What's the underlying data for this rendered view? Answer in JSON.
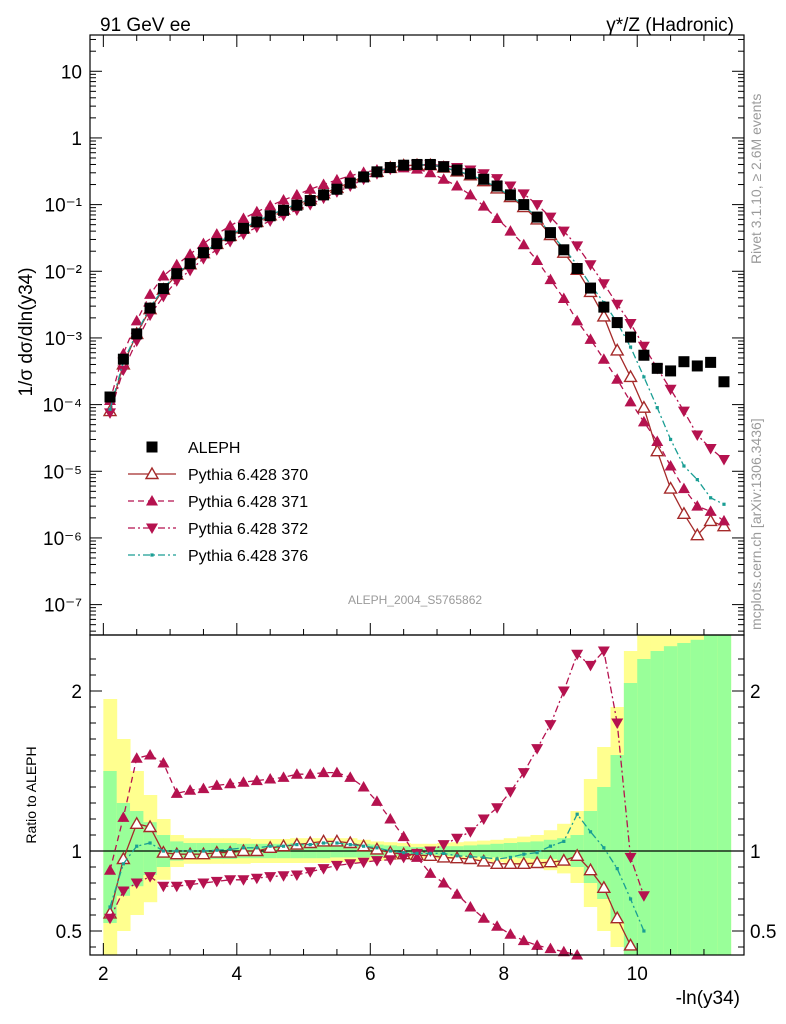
{
  "header": {
    "left": "91 GeV ee",
    "right": "γ*/Z (Hadronic)"
  },
  "side": {
    "rivet": "Rivet 3.1.10, ≥ 2.6M events",
    "url": "mcplots.cern.ch [arXiv:1306.3436]"
  },
  "watermark": "ALEPH_2004_S5765862",
  "chart_data": [
    {
      "type": "scatter",
      "title": "",
      "ylabel": "1/σ  dσ/dln(y34)",
      "yscale": "log",
      "ylim": [
        3.5e-08,
        35
      ],
      "xlim": [
        1.8,
        11.6
      ],
      "yticks": [
        {
          "v": 1e-07,
          "label": "10⁻⁷"
        },
        {
          "v": 1e-06,
          "label": "10⁻⁶"
        },
        {
          "v": 1e-05,
          "label": "10⁻⁵"
        },
        {
          "v": 0.0001,
          "label": "10⁻⁴"
        },
        {
          "v": 0.001,
          "label": "10⁻³"
        },
        {
          "v": 0.01,
          "label": "10⁻²"
        },
        {
          "v": 0.1,
          "label": "10⁻¹"
        },
        {
          "v": 1,
          "label": "1"
        },
        {
          "v": 10,
          "label": "10"
        }
      ],
      "x": [
        2.1,
        2.3,
        2.5,
        2.7,
        2.9,
        3.1,
        3.3,
        3.5,
        3.7,
        3.9,
        4.1,
        4.3,
        4.5,
        4.7,
        4.9,
        5.1,
        5.3,
        5.5,
        5.7,
        5.9,
        6.1,
        6.3,
        6.5,
        6.7,
        6.9,
        7.1,
        7.3,
        7.5,
        7.7,
        7.9,
        8.1,
        8.3,
        8.5,
        8.7,
        8.9,
        9.1,
        9.3,
        9.5,
        9.7,
        9.9,
        10.1,
        10.3,
        10.5,
        10.7,
        10.9,
        11.1,
        11.3
      ],
      "series": [
        {
          "name": "ALEPH",
          "color": "#000000",
          "marker": "square-filled",
          "line": "none",
          "values": [
            0.00013,
            0.00048,
            0.00115,
            0.0028,
            0.0055,
            0.0092,
            0.013,
            0.019,
            0.026,
            0.034,
            0.044,
            0.055,
            0.068,
            0.082,
            0.098,
            0.115,
            0.14,
            0.17,
            0.21,
            0.26,
            0.31,
            0.36,
            0.39,
            0.4,
            0.4,
            0.37,
            0.33,
            0.29,
            0.24,
            0.19,
            0.14,
            0.1,
            0.065,
            0.038,
            0.021,
            0.011,
            0.0056,
            0.0029,
            0.0017,
            0.00103,
            0.00055,
            0.00035,
            0.00032,
            0.00044,
            0.00038,
            0.00043,
            0.00022
          ]
        },
        {
          "name": "Pythia 6.428 370",
          "color": "#a52a2a",
          "marker": "triangle-up-open",
          "line": "solid",
          "values": [
            8e-05,
            0.0004,
            0.00115,
            0.0027,
            0.0053,
            0.0089,
            0.0127,
            0.0187,
            0.0257,
            0.0339,
            0.044,
            0.055,
            0.069,
            0.084,
            0.101,
            0.12,
            0.147,
            0.178,
            0.215,
            0.265,
            0.31,
            0.355,
            0.385,
            0.39,
            0.39,
            0.36,
            0.315,
            0.275,
            0.225,
            0.175,
            0.13,
            0.092,
            0.06,
            0.035,
            0.019,
            0.0105,
            0.0049,
            0.0021,
            0.00065,
            0.00026,
            9e-05,
            2e-05,
            5.5e-06,
            2.3e-06,
            1.1e-06,
            1.8e-06,
            1.5e-06
          ]
        },
        {
          "name": "Pythia 6.428 371",
          "color": "#b5124f",
          "marker": "triangle-up-filled",
          "line": "dashed",
          "values": [
            0.000115,
            0.00058,
            0.0018,
            0.0045,
            0.0085,
            0.0125,
            0.018,
            0.026,
            0.036,
            0.048,
            0.062,
            0.078,
            0.096,
            0.117,
            0.14,
            0.17,
            0.2,
            0.235,
            0.27,
            0.305,
            0.33,
            0.35,
            0.355,
            0.34,
            0.3,
            0.24,
            0.19,
            0.14,
            0.095,
            0.062,
            0.04,
            0.025,
            0.0145,
            0.0075,
            0.0039,
            0.0018,
            0.00095,
            0.00048,
            0.00024,
            0.00011,
            5.5e-05,
            2.8e-05,
            1.2e-05,
            5.5e-06,
            3e-06,
            2.5e-06,
            1.8e-06
          ]
        },
        {
          "name": "Pythia 6.428 372",
          "color": "#b5124f",
          "marker": "triangle-down-filled",
          "line": "dashdot",
          "values": [
            7.5e-05,
            0.00033,
            0.0009,
            0.0022,
            0.0042,
            0.0072,
            0.0103,
            0.0155,
            0.021,
            0.028,
            0.036,
            0.046,
            0.057,
            0.069,
            0.083,
            0.1,
            0.125,
            0.155,
            0.19,
            0.24,
            0.29,
            0.34,
            0.375,
            0.395,
            0.4,
            0.385,
            0.36,
            0.33,
            0.29,
            0.245,
            0.19,
            0.145,
            0.1,
            0.065,
            0.04,
            0.024,
            0.0125,
            0.0065,
            0.0032,
            0.00165,
            0.00075,
            0.00035,
            0.00017,
            8e-05,
            3.5e-05,
            2.2e-05,
            1.5e-05
          ]
        },
        {
          "name": "Pythia 6.428 376",
          "color": "#1a9e94",
          "marker": "dot",
          "line": "dashdot",
          "values": [
            8.5e-05,
            0.00044,
            0.00118,
            0.0029,
            0.0055,
            0.0093,
            0.013,
            0.019,
            0.0262,
            0.0345,
            0.045,
            0.056,
            0.07,
            0.085,
            0.102,
            0.12,
            0.148,
            0.18,
            0.218,
            0.268,
            0.315,
            0.36,
            0.39,
            0.395,
            0.395,
            0.365,
            0.32,
            0.28,
            0.23,
            0.18,
            0.135,
            0.098,
            0.064,
            0.037,
            0.022,
            0.0125,
            0.0063,
            0.0034,
            0.0017,
            0.00073,
            0.00026,
            9e-05,
            3e-05,
            1.2e-05,
            7.5e-06,
            4e-06,
            3.2e-06
          ]
        }
      ]
    },
    {
      "type": "scatter",
      "ylabel": "Ratio to ALEPH",
      "xlabel": "-ln(y34)",
      "ylim": [
        0.35,
        2.35
      ],
      "xlim": [
        1.8,
        11.6
      ],
      "yticks": [
        {
          "v": 0.5,
          "label": "0.5"
        },
        {
          "v": 1,
          "label": "1"
        },
        {
          "v": 2,
          "label": "2"
        }
      ],
      "xticks": [
        {
          "v": 2,
          "label": "2"
        },
        {
          "v": 4,
          "label": "4"
        },
        {
          "v": 6,
          "label": "6"
        },
        {
          "v": 8,
          "label": "8"
        },
        {
          "v": 10,
          "label": "10"
        }
      ],
      "x": [
        2.1,
        2.3,
        2.5,
        2.7,
        2.9,
        3.1,
        3.3,
        3.5,
        3.7,
        3.9,
        4.1,
        4.3,
        4.5,
        4.7,
        4.9,
        5.1,
        5.3,
        5.5,
        5.7,
        5.9,
        6.1,
        6.3,
        6.5,
        6.7,
        6.9,
        7.1,
        7.3,
        7.5,
        7.7,
        7.9,
        8.1,
        8.3,
        8.5,
        8.7,
        8.9,
        9.1,
        9.3,
        9.5,
        9.7,
        9.9,
        10.1,
        10.3,
        10.5,
        10.7,
        10.9,
        11.1,
        11.3
      ],
      "bands": {
        "inner": [
          0.55,
          0.72,
          0.78,
          0.85,
          0.9,
          0.94,
          0.95,
          0.95,
          0.95,
          0.95,
          0.955,
          0.955,
          0.955,
          0.955,
          0.955,
          0.955,
          0.955,
          0.96,
          0.96,
          0.96,
          0.965,
          0.965,
          0.97,
          0.975,
          0.975,
          0.97,
          0.97,
          0.97,
          0.965,
          0.96,
          0.96,
          0.955,
          0.95,
          0.95,
          0.94,
          0.9,
          0.8,
          0.7,
          0.55,
          0.35,
          0.35,
          0.35,
          0.35,
          0.35,
          0.35,
          0.35,
          0.35
        ],
        "inner_hi": [
          1.5,
          1.3,
          1.25,
          1.18,
          1.1,
          1.06,
          1.05,
          1.05,
          1.05,
          1.05,
          1.045,
          1.045,
          1.045,
          1.045,
          1.05,
          1.05,
          1.05,
          1.05,
          1.05,
          1.045,
          1.04,
          1.035,
          1.03,
          1.025,
          1.025,
          1.03,
          1.03,
          1.035,
          1.04,
          1.045,
          1.05,
          1.055,
          1.06,
          1.07,
          1.08,
          1.1,
          1.25,
          1.4,
          1.6,
          2.05,
          2.2,
          2.25,
          2.28,
          2.3,
          2.32,
          2.35,
          2.35
        ],
        "outer": [
          0.35,
          0.5,
          0.6,
          0.68,
          0.82,
          0.9,
          0.92,
          0.92,
          0.92,
          0.92,
          0.92,
          0.925,
          0.925,
          0.925,
          0.925,
          0.925,
          0.925,
          0.93,
          0.93,
          0.93,
          0.94,
          0.945,
          0.95,
          0.955,
          0.955,
          0.95,
          0.95,
          0.945,
          0.94,
          0.93,
          0.92,
          0.91,
          0.9,
          0.88,
          0.86,
          0.8,
          0.65,
          0.5,
          0.4,
          0.35,
          0.35,
          0.35,
          0.35,
          0.35,
          0.35,
          0.35,
          0.35
        ],
        "outer_hi": [
          1.95,
          1.7,
          1.5,
          1.35,
          1.2,
          1.1,
          1.08,
          1.08,
          1.08,
          1.08,
          1.08,
          1.075,
          1.075,
          1.075,
          1.08,
          1.08,
          1.08,
          1.08,
          1.08,
          1.07,
          1.06,
          1.055,
          1.05,
          1.045,
          1.045,
          1.05,
          1.055,
          1.06,
          1.065,
          1.07,
          1.08,
          1.09,
          1.1,
          1.13,
          1.17,
          1.25,
          1.45,
          1.65,
          1.9,
          2.25,
          2.35,
          2.35,
          2.35,
          2.35,
          2.35,
          2.35,
          2.35
        ]
      },
      "series": [
        {
          "name": "Pythia 6.428 370",
          "color": "#a52a2a",
          "marker": "triangle-up-open",
          "line": "solid",
          "values": [
            0.61,
            0.95,
            1.17,
            1.15,
            0.99,
            0.98,
            0.98,
            0.98,
            0.99,
            0.99,
            1.0,
            1.0,
            1.02,
            1.03,
            1.04,
            1.05,
            1.06,
            1.06,
            1.05,
            1.03,
            1.01,
            0.99,
            0.98,
            0.975,
            0.97,
            0.96,
            0.955,
            0.95,
            0.935,
            0.92,
            0.92,
            0.92,
            0.925,
            0.93,
            0.94,
            0.97,
            0.88,
            0.77,
            0.58,
            0.41
          ]
        },
        {
          "name": "Pythia 6.428 371",
          "color": "#b5124f",
          "marker": "triangle-up-filled",
          "line": "dashed",
          "values": [
            0.88,
            1.21,
            1.58,
            1.6,
            1.55,
            1.36,
            1.38,
            1.39,
            1.41,
            1.42,
            1.43,
            1.44,
            1.45,
            1.46,
            1.48,
            1.48,
            1.49,
            1.49,
            1.46,
            1.4,
            1.31,
            1.2,
            1.09,
            0.96,
            0.86,
            0.8,
            0.73,
            0.65,
            0.58,
            0.53,
            0.48,
            0.44,
            0.41,
            0.39,
            0.37,
            0.35,
            0.33
          ]
        },
        {
          "name": "Pythia 6.428 372",
          "color": "#b5124f",
          "marker": "triangle-down-filled",
          "line": "dashdot",
          "values": [
            0.58,
            0.75,
            0.8,
            0.84,
            0.78,
            0.78,
            0.79,
            0.8,
            0.81,
            0.82,
            0.82,
            0.83,
            0.84,
            0.845,
            0.85,
            0.87,
            0.89,
            0.91,
            0.92,
            0.93,
            0.94,
            0.945,
            0.96,
            0.985,
            1.0,
            1.04,
            1.08,
            1.12,
            1.2,
            1.27,
            1.37,
            1.49,
            1.64,
            1.79,
            2.0,
            2.23,
            2.16,
            2.25,
            1.8,
            0.96,
            0.72
          ]
        },
        {
          "name": "Pythia 6.428 376",
          "color": "#1a9e94",
          "marker": "dot",
          "line": "dashdot",
          "values": [
            0.65,
            0.92,
            1.03,
            1.05,
            1.0,
            1.0,
            1.0,
            1.0,
            1.005,
            1.01,
            1.02,
            1.02,
            1.03,
            1.03,
            1.04,
            1.04,
            1.05,
            1.05,
            1.04,
            1.03,
            1.02,
            1.0,
            0.99,
            0.985,
            0.985,
            0.985,
            0.97,
            0.965,
            0.96,
            0.95,
            0.96,
            0.98,
            0.99,
            1.03,
            1.06,
            1.23,
            1.12,
            1.02,
            0.89,
            0.7,
            0.5
          ]
        }
      ]
    }
  ]
}
